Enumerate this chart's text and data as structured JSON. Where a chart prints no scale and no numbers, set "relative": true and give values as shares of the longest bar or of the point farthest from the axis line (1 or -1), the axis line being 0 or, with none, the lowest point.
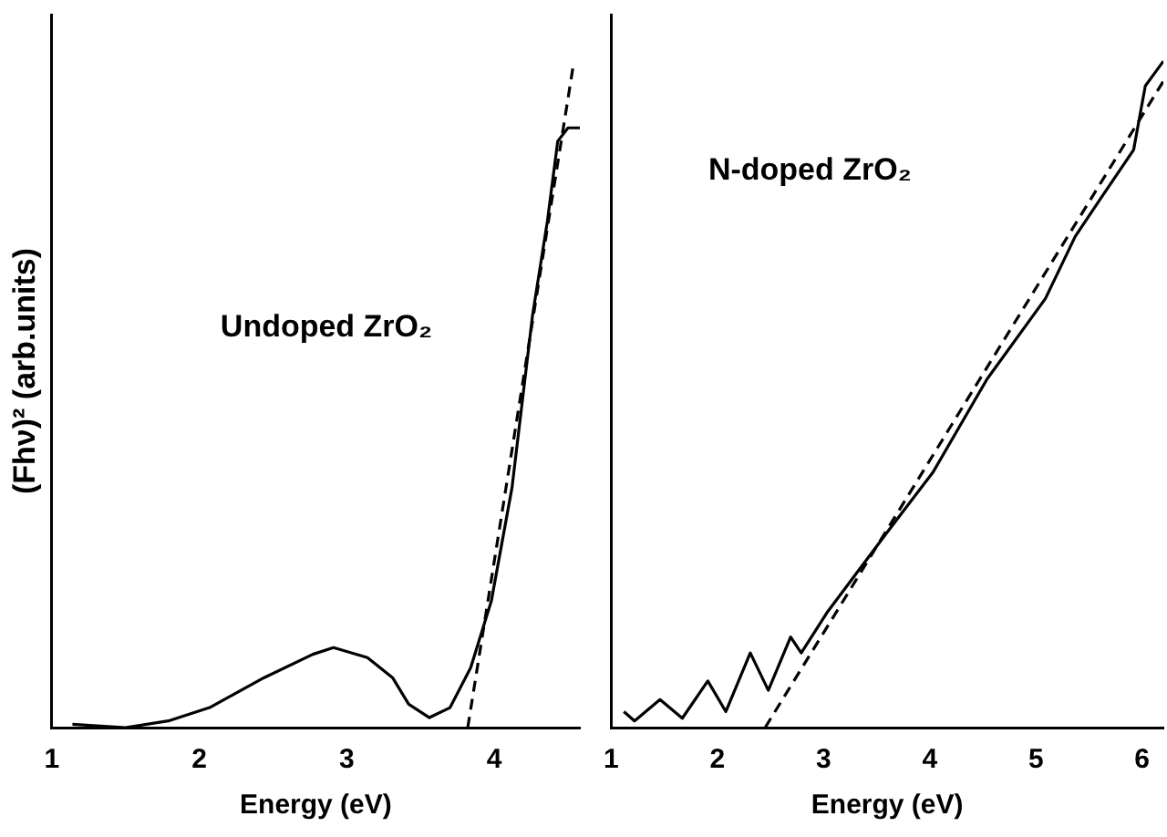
{
  "chart_data": [
    {
      "type": "line",
      "xlabel": "Energy (eV)",
      "ylabel": "(Fhν)² (arb.units)",
      "annotations": [
        "Undoped ZrO₂"
      ],
      "relative": true,
      "tick_labels": "x",
      "marker": "none",
      "xlim": [
        1,
        4.58
      ],
      "xticks": [
        1,
        2,
        3,
        4
      ],
      "series": [
        {
          "color": "#000000",
          "line_style": "solid",
          "x": [
            1.14,
            1.5,
            1.79,
            2.07,
            2.44,
            2.77,
            2.91,
            3.14,
            3.31,
            3.42,
            3.56,
            3.7,
            3.84,
            3.98,
            4.12,
            4.26,
            4.36,
            4.43,
            4.5,
            4.58
          ],
          "values": [
            0.005,
            0,
            0.01,
            0.03,
            0.075,
            0.11,
            0.12,
            0.105,
            0.075,
            0.035,
            0.015,
            0.03,
            0.09,
            0.19,
            0.36,
            0.62,
            0.76,
            0.88,
            0.9,
            0.9
          ]
        },
        {
          "type": "line",
          "color": "#000000",
          "line_style": "dashed",
          "x": [
            3.82,
            4.54
          ],
          "values": [
            0,
            1
          ]
        }
      ]
    },
    {
      "type": "line",
      "xlabel": "Energy (eV)",
      "annotations": [
        "N-doped ZrO₂"
      ],
      "relative": true,
      "tick_labels": "x",
      "marker": "none",
      "xlim": [
        1,
        6.2
      ],
      "xticks": [
        1,
        2,
        3,
        4,
        5,
        6
      ],
      "series": [
        {
          "color": "#000000",
          "line_style": "solid",
          "x": [
            1.12,
            1.22,
            1.46,
            1.67,
            1.91,
            2.08,
            2.31,
            2.48,
            2.69,
            2.79,
            3.03,
            3.58,
            4.03,
            4.54,
            5.09,
            5.37,
            5.61,
            5.92,
            6.03,
            6.2
          ],
          "values": [
            0.024,
            0.01,
            0.042,
            0.014,
            0.07,
            0.024,
            0.112,
            0.056,
            0.136,
            0.112,
            0.172,
            0.289,
            0.383,
            0.523,
            0.644,
            0.737,
            0.794,
            0.867,
            0.963,
            1
          ]
        },
        {
          "type": "line",
          "color": "#000000",
          "line_style": "dashed",
          "x": [
            2.45,
            6.2
          ],
          "values": [
            0,
            0.97
          ]
        }
      ]
    }
  ]
}
